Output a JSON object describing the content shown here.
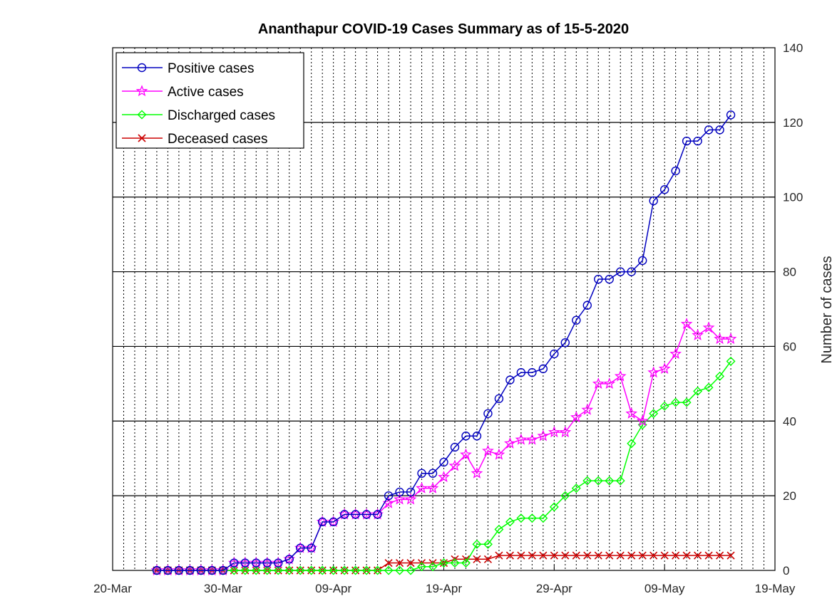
{
  "chart_data": {
    "type": "line",
    "title": "Ananthapur COVID-19 Cases Summary as of 15-5-2020",
    "xlabel": "",
    "ylabel": "Number of cases",
    "x_axis": {
      "start": "2020-03-20",
      "end": "2020-05-19",
      "tick_labels": [
        "20-Mar",
        "30-Mar",
        "09-Apr",
        "19-Apr",
        "29-Apr",
        "09-May",
        "19-May"
      ]
    },
    "y_axis": {
      "position": "right",
      "ylim": [
        0,
        140
      ],
      "tick_labels": [
        "0",
        "20",
        "40",
        "60",
        "80",
        "100",
        "120",
        "140"
      ]
    },
    "grid": {
      "x": "dotted-daily",
      "y": "solid"
    },
    "legend_position": "top-left",
    "x": [
      "2020-03-24",
      "2020-03-25",
      "2020-03-26",
      "2020-03-27",
      "2020-03-28",
      "2020-03-29",
      "2020-03-30",
      "2020-03-31",
      "2020-04-01",
      "2020-04-02",
      "2020-04-03",
      "2020-04-04",
      "2020-04-05",
      "2020-04-06",
      "2020-04-07",
      "2020-04-08",
      "2020-04-09",
      "2020-04-10",
      "2020-04-11",
      "2020-04-12",
      "2020-04-13",
      "2020-04-14",
      "2020-04-15",
      "2020-04-16",
      "2020-04-17",
      "2020-04-18",
      "2020-04-19",
      "2020-04-20",
      "2020-04-21",
      "2020-04-22",
      "2020-04-23",
      "2020-04-24",
      "2020-04-25",
      "2020-04-26",
      "2020-04-27",
      "2020-04-28",
      "2020-04-29",
      "2020-04-30",
      "2020-05-01",
      "2020-05-02",
      "2020-05-03",
      "2020-05-04",
      "2020-05-05",
      "2020-05-06",
      "2020-05-07",
      "2020-05-08",
      "2020-05-09",
      "2020-05-10",
      "2020-05-11",
      "2020-05-12",
      "2020-05-13",
      "2020-05-14",
      "2020-05-15"
    ],
    "series": [
      {
        "name": "Positive cases",
        "color": "#0000bf",
        "marker": "circle",
        "values": [
          0,
          0,
          0,
          0,
          0,
          0,
          0,
          2,
          2,
          2,
          2,
          2,
          3,
          6,
          6,
          13,
          13,
          15,
          15,
          15,
          15,
          20,
          21,
          21,
          26,
          26,
          29,
          33,
          36,
          36,
          42,
          46,
          51,
          53,
          53,
          54,
          58,
          61,
          67,
          71,
          78,
          78,
          80,
          80,
          83,
          99,
          102,
          107,
          115,
          115,
          118,
          118,
          122
        ]
      },
      {
        "name": "Active cases",
        "color": "#ff00ff",
        "marker": "star",
        "values": [
          0,
          0,
          0,
          0,
          0,
          0,
          0,
          2,
          2,
          2,
          2,
          2,
          3,
          6,
          6,
          13,
          13,
          15,
          15,
          15,
          15,
          18,
          19,
          19,
          22,
          22,
          25,
          28,
          31,
          26,
          32,
          31,
          34,
          35,
          35,
          36,
          37,
          37,
          41,
          43,
          50,
          50,
          52,
          42,
          40,
          53,
          54,
          58,
          66,
          63,
          65,
          62,
          62
        ]
      },
      {
        "name": "Discharged cases",
        "color": "#00ff00",
        "marker": "diamond",
        "values": [
          0,
          0,
          0,
          0,
          0,
          0,
          0,
          0,
          0,
          0,
          0,
          0,
          0,
          0,
          0,
          0,
          0,
          0,
          0,
          0,
          0,
          0,
          0,
          0,
          1,
          1,
          2,
          2,
          2,
          7,
          7,
          11,
          13,
          14,
          14,
          14,
          17,
          20,
          22,
          24,
          24,
          24,
          24,
          34,
          39,
          42,
          44,
          45,
          45,
          48,
          49,
          52,
          56
        ]
      },
      {
        "name": "Deceased cases",
        "color": "#cc0000",
        "marker": "x",
        "values": [
          0,
          0,
          0,
          0,
          0,
          0,
          0,
          0,
          0,
          0,
          0,
          0,
          0,
          0,
          0,
          0,
          0,
          0,
          0,
          0,
          0,
          2,
          2,
          2,
          2,
          2,
          2,
          3,
          3,
          3,
          3,
          4,
          4,
          4,
          4,
          4,
          4,
          4,
          4,
          4,
          4,
          4,
          4,
          4,
          4,
          4,
          4,
          4,
          4,
          4,
          4,
          4,
          4
        ]
      }
    ]
  }
}
